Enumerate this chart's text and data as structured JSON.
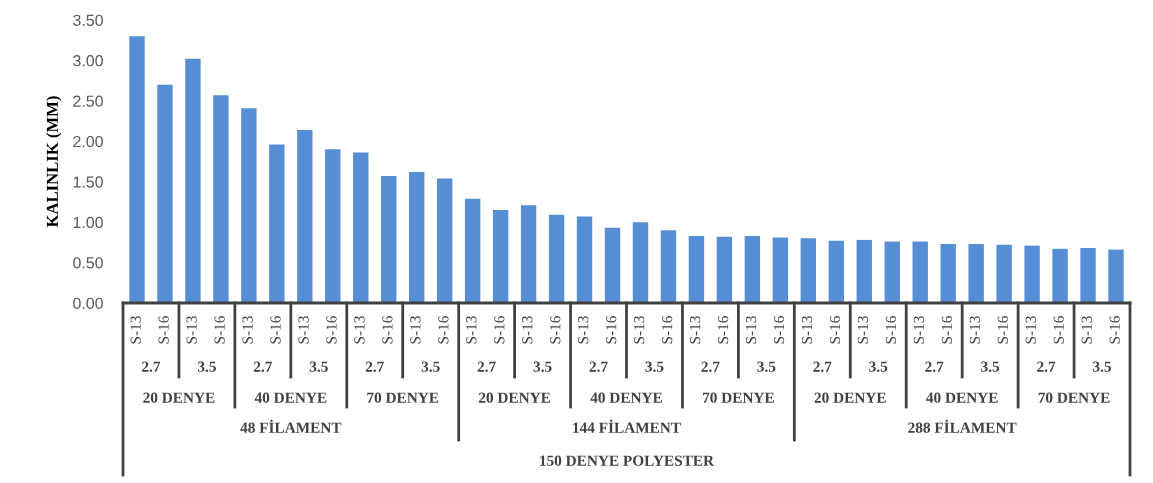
{
  "chart_data": {
    "type": "bar",
    "ylabel": "KALINLIK (MM)",
    "categories": [
      "S-13",
      "S-16",
      "S-13",
      "S-16",
      "S-13",
      "S-16",
      "S-13",
      "S-16",
      "S-13",
      "S-16",
      "S-13",
      "S-16",
      "S-13",
      "S-16",
      "S-13",
      "S-16",
      "S-13",
      "S-16",
      "S-13",
      "S-16",
      "S-13",
      "S-16",
      "S-13",
      "S-16",
      "S-13",
      "S-16",
      "S-13",
      "S-16",
      "S-13",
      "S-16",
      "S-13",
      "S-16",
      "S-13",
      "S-16",
      "S-13",
      "S-16"
    ],
    "values": [
      3.3,
      2.7,
      3.02,
      2.57,
      2.41,
      1.96,
      2.14,
      1.9,
      1.86,
      1.57,
      1.62,
      1.54,
      1.29,
      1.15,
      1.21,
      1.09,
      1.07,
      0.93,
      1.0,
      0.9,
      0.83,
      0.82,
      0.83,
      0.81,
      0.8,
      0.77,
      0.78,
      0.76,
      0.76,
      0.73,
      0.73,
      0.72,
      0.71,
      0.67,
      0.68,
      0.66
    ],
    "color": "#558ed5",
    "ylim": [
      0,
      3.5
    ],
    "yticks": [
      {
        "value": 0,
        "label": "0.00"
      },
      {
        "value": 0.5,
        "label": "0.50"
      },
      {
        "value": 1,
        "label": "1.00"
      },
      {
        "value": 1.5,
        "label": "1.50"
      },
      {
        "value": 2,
        "label": "2.00"
      },
      {
        "value": 2.5,
        "label": "2.50"
      },
      {
        "value": 3,
        "label": "3.00"
      },
      {
        "value": 3.5,
        "label": "3.50"
      }
    ],
    "grid": false,
    "annotations": [
      "2.7",
      "3.5",
      "2.7",
      "3.5",
      "2.7",
      "3.5",
      "2.7",
      "3.5",
      "2.7",
      "3.5",
      "2.7",
      "3.5",
      "2.7",
      "3.5",
      "2.7",
      "3.5",
      "2.7",
      "3.5",
      "20 DENYE",
      "40 DENYE",
      "70 DENYE",
      "20 DENYE",
      "40 DENYE",
      "70 DENYE",
      "20 DENYE",
      "40 DENYE",
      "70 DENYE",
      "48 FİLAMENT",
      "144 FİLAMENT",
      "288 FİLAMENT",
      "150 DENYE POLYESTER"
    ]
  }
}
